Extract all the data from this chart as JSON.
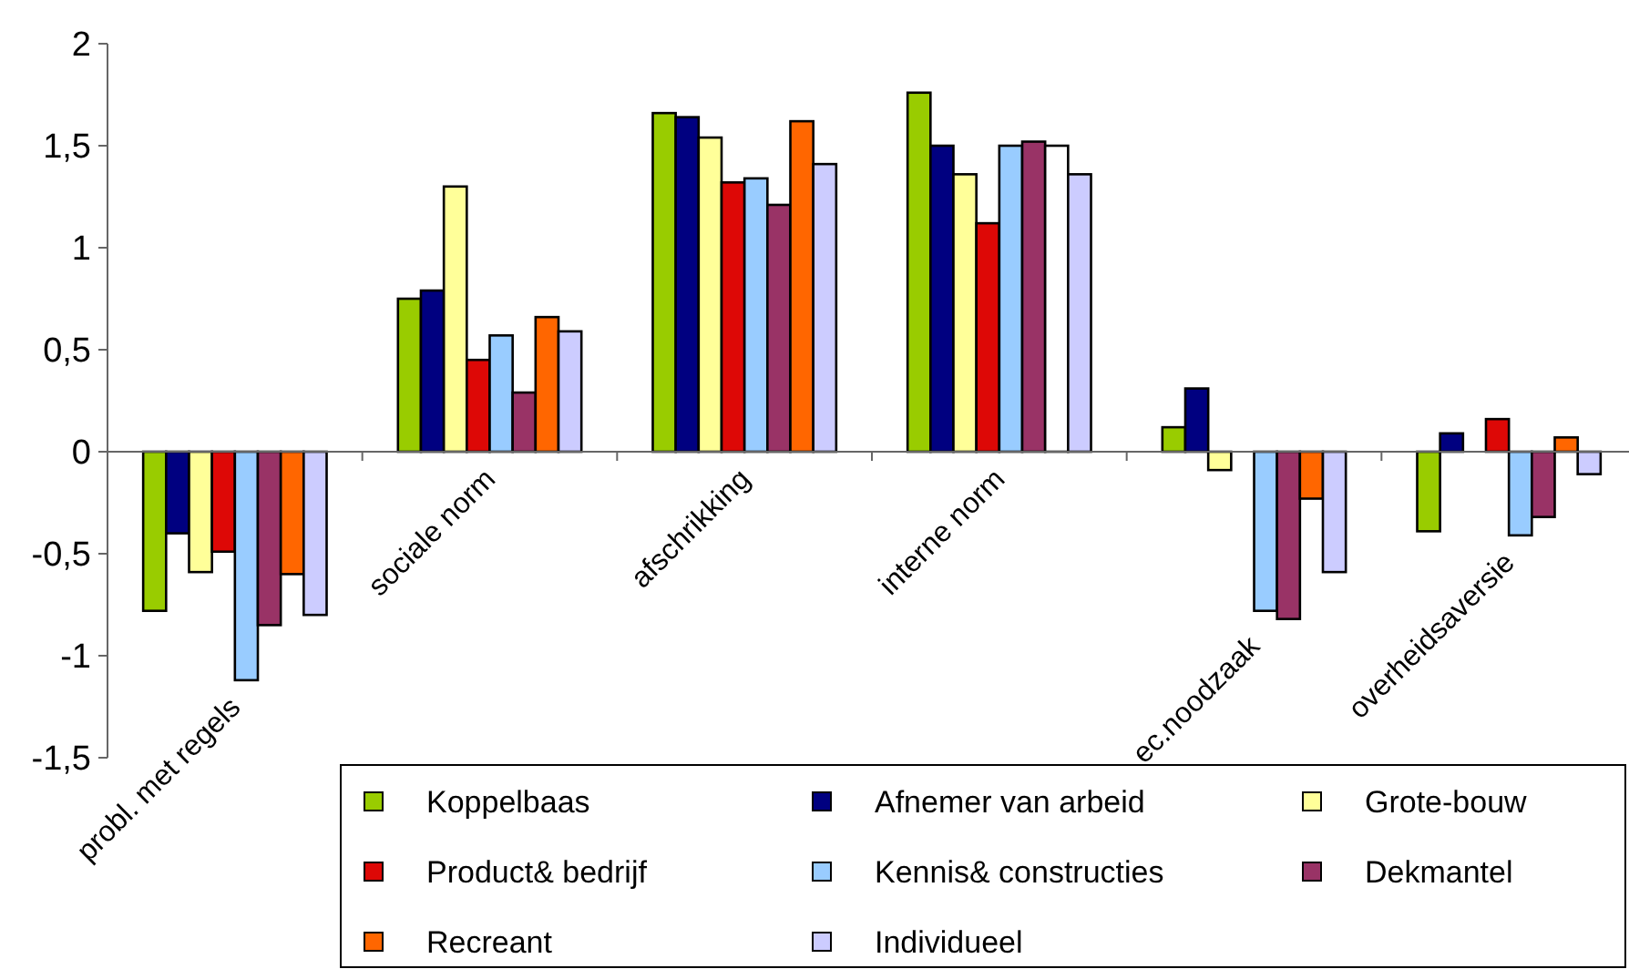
{
  "chart_data": {
    "type": "bar",
    "categories": [
      "probl. met regels",
      "sociale norm",
      "afschrikking",
      "interne norm",
      "ec.noodzaak",
      "overheidsaversie"
    ],
    "ylim": [
      -1.5,
      2
    ],
    "yticks": [
      {
        "value": -1.5,
        "label": "-1,5"
      },
      -1,
      {
        "value": -0.5,
        "label": "-0,5"
      },
      0,
      {
        "value": 0.5,
        "label": "0,5"
      },
      1,
      {
        "value": 1.5,
        "label": "1,5"
      },
      2
    ],
    "grid": false,
    "legend": "bottom",
    "series": [
      {
        "name": "Koppelbaas",
        "color": "#99cc00",
        "values": [
          -0.78,
          0.75,
          1.66,
          1.76,
          0.12,
          -0.39
        ]
      },
      {
        "name": "Afnemer van arbeid",
        "color": "#000080",
        "values": [
          -0.4,
          0.79,
          1.64,
          1.5,
          0.31,
          0.09
        ]
      },
      {
        "name": "Grote-bouw",
        "color": "#ffff99",
        "values": [
          -0.59,
          1.3,
          1.54,
          1.36,
          -0.09,
          null
        ]
      },
      {
        "name": "Product& bedrijf",
        "color": "#dd0806",
        "values": [
          -0.49,
          0.45,
          1.32,
          1.12,
          null,
          0.16
        ]
      },
      {
        "name": "Kennis& constructies",
        "color": "#99ccff",
        "values": [
          -1.12,
          0.57,
          1.34,
          1.5,
          -0.78,
          -0.41
        ]
      },
      {
        "name": "Dekmantel",
        "color": "#993366",
        "values": [
          -0.85,
          0.29,
          1.21,
          1.52,
          -0.82,
          -0.32
        ]
      },
      {
        "name": "Recreant",
        "color": "#ff6600",
        "colors": [
          "#ff6600",
          "#ff6600",
          "#ff6600",
          "#ffffff",
          "#ff6600",
          "#ff6600"
        ],
        "values": [
          -0.6,
          0.66,
          1.62,
          1.5,
          -0.23,
          0.07
        ]
      },
      {
        "name": "Individueel",
        "color": "#ccccff",
        "values": [
          -0.8,
          0.59,
          1.41,
          1.36,
          -0.59,
          -0.11
        ]
      }
    ]
  }
}
